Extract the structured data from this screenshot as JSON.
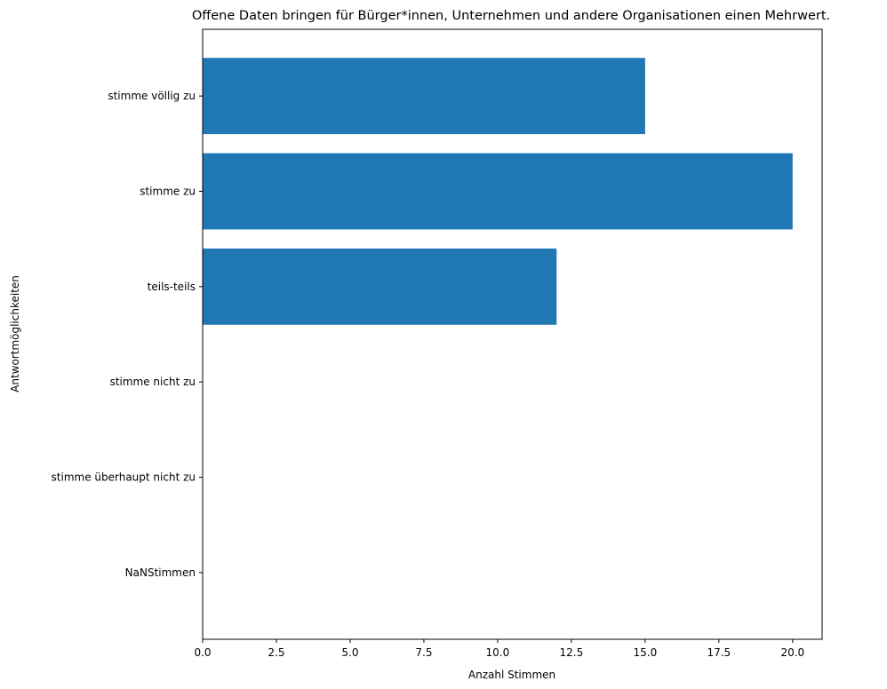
{
  "chart_data": {
    "type": "bar",
    "orientation": "horizontal",
    "title": "Offene Daten bringen für Bürger*innen, Unternehmen und andere Organisationen einen Mehrwert.",
    "xlabel": "Anzahl Stimmen",
    "ylabel": "Antwortmöglichkeiten",
    "categories": [
      "stimme völlig zu",
      "stimme zu",
      "teils-teils",
      "stimme nicht zu",
      "stimme überhaupt nicht zu",
      "NaNStimmen"
    ],
    "values": [
      15,
      20,
      12,
      0,
      0,
      0
    ],
    "xlim": [
      0,
      21
    ],
    "xticks": [
      0,
      2.5,
      5,
      7.5,
      10,
      12.5,
      15,
      17.5,
      20
    ],
    "xtick_labels": [
      "0.0",
      "2.5",
      "5.0",
      "7.5",
      "10.0",
      "12.5",
      "15.0",
      "17.5",
      "20.0"
    ],
    "bar_color": "#1f77b4",
    "grid": false,
    "legend": "none"
  }
}
